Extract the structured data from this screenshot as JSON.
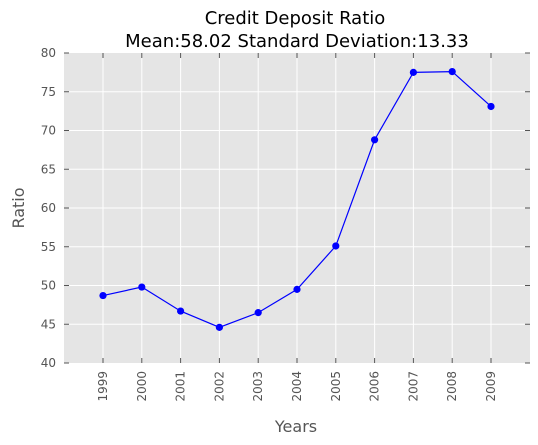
{
  "chart_data": {
    "type": "line",
    "title_line1": "Credit Deposit Ratio",
    "title_line2": "Mean:58.02 Standard Deviation:13.33",
    "xlabel": "Years",
    "ylabel": "Ratio",
    "categories": [
      "1999",
      "2000",
      "2001",
      "2002",
      "2003",
      "2004",
      "2005",
      "2006",
      "2007",
      "2008",
      "2009"
    ],
    "values": [
      48.7,
      49.8,
      46.7,
      44.6,
      46.5,
      49.5,
      55.1,
      68.8,
      77.5,
      77.6,
      73.1
    ],
    "ylim": [
      40,
      80
    ],
    "yticks": [
      "40",
      "45",
      "50",
      "55",
      "60",
      "65",
      "70",
      "75",
      "80"
    ],
    "grid": true,
    "colors": {
      "line": "#0000ff",
      "plot_background": "#e5e5e5",
      "grid": "#ffffff"
    }
  }
}
